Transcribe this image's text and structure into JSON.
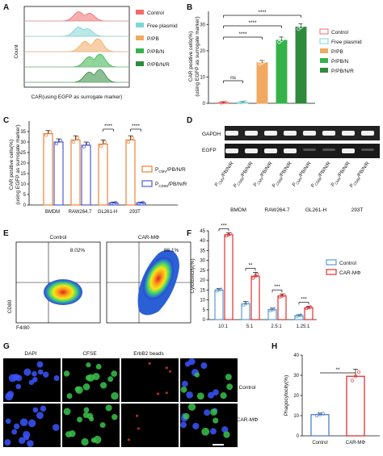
{
  "panels": {
    "A": "A",
    "B": "B",
    "C": "C",
    "D": "D",
    "E": "E",
    "F": "F",
    "G": "G",
    "H": "H"
  },
  "panelA": {
    "ylabel": "Count",
    "xlabel": "CAR(using EGFP as surrogate marker)",
    "legend": [
      "Control",
      "Free plasmid",
      "P/PB",
      "P/PB/N",
      "P/PB/N/R"
    ],
    "colors": [
      "#f06b6b",
      "#7fd6d6",
      "#f2a960",
      "#35b34a",
      "#2f8a3e"
    ]
  },
  "panelD": {
    "rows": [
      "GAPDH",
      "EGFP"
    ],
    "lanes": [
      "P",
      "P",
      "P",
      "P",
      "P",
      "P",
      "P",
      "P"
    ],
    "lane_sub": [
      "CMV",
      "CD68",
      "CMV",
      "CD68",
      "CMV",
      "CD68",
      "CMV",
      "CD68"
    ],
    "lane_suffix": "/PB/N/R",
    "groups": [
      "BMDM",
      "RAW264.7",
      "GL261-H",
      "293T"
    ]
  },
  "panelE": {
    "ylabel": "CD80",
    "xlabel": "F4/80",
    "titles": [
      "Control",
      "CAR-MΦ"
    ],
    "percents": [
      "8.02%",
      "88.1%"
    ]
  },
  "panelG": {
    "col_titles": [
      "DAPI",
      "CFSE",
      "ErbB2 beads"
    ],
    "row_titles": [
      "Control",
      "CAR-MΦ"
    ]
  },
  "chart_data": [
    {
      "panel": "B",
      "type": "bar",
      "categories": [
        "Control",
        "Free plasmid",
        "P/PB",
        "P/PB/N",
        "P/PB/N/R"
      ],
      "values": [
        0.3,
        0.4,
        15.5,
        24,
        29
      ],
      "errors": [
        0.2,
        0.2,
        0.8,
        1.2,
        1.2
      ],
      "colors": [
        "#f06b6b",
        "#7fd6d6",
        "#f2a960",
        "#35b34a",
        "#2f8a3e"
      ],
      "ylabel": "CAR positive cells(%)",
      "ylabel2": "(using EGFP as surrogate marker)",
      "ylim": [
        0,
        35
      ],
      "yticks": [
        0,
        10,
        20,
        30
      ],
      "significance": [
        {
          "from": 0,
          "to": 1,
          "label": "ns"
        },
        {
          "from": 0,
          "to": 2,
          "label": "****"
        },
        {
          "from": 0,
          "to": 3,
          "label": "****"
        },
        {
          "from": 0,
          "to": 4,
          "label": "****"
        }
      ]
    },
    {
      "panel": "C",
      "type": "bar",
      "categories": [
        "BMDM",
        "RAW264.7",
        "GL261-H",
        "293T"
      ],
      "series": [
        {
          "name": "P",
          "sub": "CMV",
          "suffix": "/PB/N/R",
          "values": [
            34,
            31,
            29,
            31
          ],
          "errors": [
            1.5,
            2,
            2,
            2
          ],
          "color": "#f0813a"
        },
        {
          "name": "P",
          "sub": "CD68",
          "suffix": "/PB/N/R",
          "values": [
            30,
            28.5,
            1,
            1
          ],
          "errors": [
            1.5,
            1.5,
            0.4,
            0.4
          ],
          "color": "#4f5bd5"
        }
      ],
      "ylabel": "CAR positive cells(%)",
      "ylabel2": "(using EGFP as surrogate marker)",
      "ylim": [
        0,
        40
      ],
      "yticks": [
        0,
        5,
        10,
        15,
        20,
        25,
        30,
        35
      ],
      "significance": [
        {
          "category": 2,
          "label": "****"
        },
        {
          "category": 3,
          "label": "****"
        }
      ]
    },
    {
      "panel": "F",
      "type": "bar",
      "categories": [
        "10:1",
        "5:1",
        "2.5:1",
        "1.25:1"
      ],
      "series": [
        {
          "name": "Control",
          "values": [
            15,
            8,
            5,
            2
          ],
          "errors": [
            0.8,
            1.2,
            0.8,
            0.5
          ],
          "color": "#5b9bd5"
        },
        {
          "name": "CAR-MΦ",
          "values": [
            43,
            22,
            12,
            6
          ],
          "errors": [
            1,
            2,
            1,
            0.8
          ],
          "color": "#e03131"
        }
      ],
      "ylabel": "Cytotoxicity(%)",
      "ylim": [
        0,
        45
      ],
      "yticks": [
        0,
        5,
        10,
        15,
        20,
        25,
        30,
        35,
        40,
        45
      ],
      "significance": [
        {
          "category": 0,
          "label": "***"
        },
        {
          "category": 1,
          "label": "**"
        },
        {
          "category": 2,
          "label": "***"
        },
        {
          "category": 3,
          "label": "***"
        }
      ]
    },
    {
      "panel": "H",
      "type": "bar",
      "categories": [
        "Control",
        "CAR-MΦ"
      ],
      "values": [
        10.5,
        29.5
      ],
      "errors": [
        0.8,
        3.5
      ],
      "colors": [
        "#4f7fd0",
        "#e03131"
      ],
      "ylabel": "Phagocytocity(%)",
      "ylim": [
        0,
        40
      ],
      "yticks": [
        0,
        10,
        20,
        30,
        40
      ],
      "significance": [
        {
          "from": 0,
          "to": 1,
          "label": "**"
        }
      ]
    }
  ]
}
